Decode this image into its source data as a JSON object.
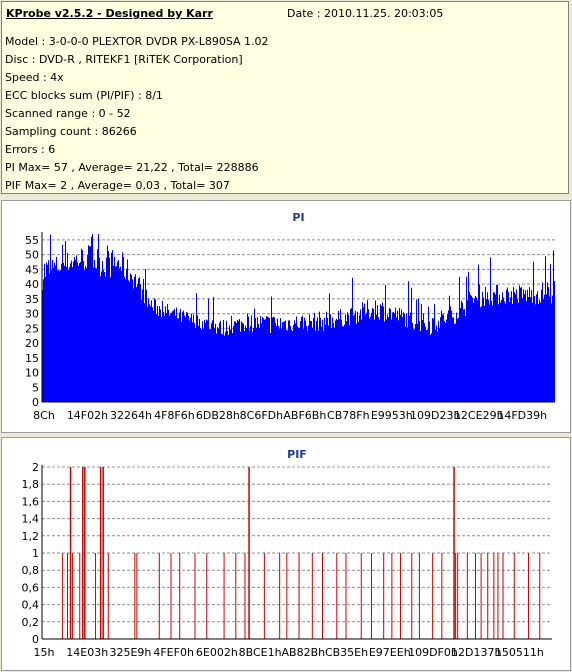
{
  "info": {
    "title": "KProbe v2.5.2 - Designed by Karr",
    "date": "Date : 2010.11.25. 20:03:05",
    "lines": [
      "Model : 3-0-0-0 PLEXTOR DVDR   PX-L890SA 1.02",
      "Disc : DVD-R , RITEKF1 [RiTEK Corporation]",
      "Speed : 4x",
      "ECC blocks sum (PI/PIF) : 8/1",
      "Scanned range : 0 - 52",
      "Sampling count : 86266",
      "Errors : 6",
      "PI Max= 57 , Average= 21,22 , Total= 228886",
      "PIF Max= 2 , Average= 0,03 , Total= 307"
    ]
  },
  "chart_data": [
    {
      "type": "bar",
      "title": "PI",
      "color": "#0000ff",
      "ylim": [
        0,
        57
      ],
      "y_ticks": [
        "0",
        "5",
        "10",
        "15",
        "20",
        "25",
        "30",
        "35",
        "40",
        "45",
        "50",
        "55"
      ],
      "x_ticks": [
        "8Ch",
        "14F02h",
        "32264h",
        "4F8F6h",
        "6DB28h",
        "8C6FDh",
        "ABF6Bh",
        "CB78Fh",
        "E9953h",
        "109D23h",
        "12CE29h",
        "14FD39h"
      ],
      "grid": true,
      "profile": [
        [
          0,
          38,
          50
        ],
        [
          3,
          42,
          50
        ],
        [
          6,
          44,
          52
        ],
        [
          9,
          44,
          54
        ],
        [
          12,
          42,
          52
        ],
        [
          15,
          42,
          52
        ],
        [
          18,
          38,
          46
        ],
        [
          21,
          30,
          36
        ],
        [
          25,
          27,
          33
        ],
        [
          30,
          25,
          30
        ],
        [
          35,
          22,
          28
        ],
        [
          40,
          24,
          30
        ],
        [
          45,
          23,
          30
        ],
        [
          50,
          24,
          30
        ],
        [
          55,
          24,
          31
        ],
        [
          60,
          26,
          32
        ],
        [
          65,
          28,
          36
        ],
        [
          70,
          26,
          32
        ],
        [
          75,
          22,
          30
        ],
        [
          80,
          26,
          33
        ],
        [
          85,
          32,
          40
        ],
        [
          90,
          33,
          40
        ],
        [
          95,
          33,
          40
        ],
        [
          100,
          33,
          42
        ]
      ]
    },
    {
      "type": "bar",
      "title": "PIF",
      "color": "#cc0000",
      "ylim": [
        0,
        2
      ],
      "y_ticks": [
        "0",
        "0,2",
        "0,4",
        "0,6",
        "0,8",
        "1",
        "1,2",
        "1,4",
        "1,6",
        "1,8",
        "2"
      ],
      "x_ticks": [
        "15h",
        "14E03h",
        "325E9h",
        "4FEF0h",
        "6E002h",
        "8BCE1h",
        "AB82Bh",
        "CB35Eh",
        "E97EEh",
        "109DF0h",
        "12D137h",
        "150511h"
      ],
      "grid": true,
      "spikes": [
        [
          4.0,
          1
        ],
        [
          5.0,
          1
        ],
        [
          5.6,
          2
        ],
        [
          6.0,
          1
        ],
        [
          7.4,
          1
        ],
        [
          8.0,
          2
        ],
        [
          8.4,
          2
        ],
        [
          10.5,
          1
        ],
        [
          11.5,
          2
        ],
        [
          12.0,
          2
        ],
        [
          13.0,
          1
        ],
        [
          18.2,
          1
        ],
        [
          18.6,
          1
        ],
        [
          23.0,
          1
        ],
        [
          25.3,
          1
        ],
        [
          27.0,
          1
        ],
        [
          30.0,
          1
        ],
        [
          32.3,
          1
        ],
        [
          35.7,
          1
        ],
        [
          38.0,
          1
        ],
        [
          39.8,
          1
        ],
        [
          40.6,
          2
        ],
        [
          43.6,
          1
        ],
        [
          46.6,
          1
        ],
        [
          48.0,
          1
        ],
        [
          50.4,
          1
        ],
        [
          53.0,
          1
        ],
        [
          55.0,
          1
        ],
        [
          57.8,
          1
        ],
        [
          59.6,
          1
        ],
        [
          62.6,
          1
        ],
        [
          64.6,
          1
        ],
        [
          67.0,
          1
        ],
        [
          68.6,
          1
        ],
        [
          70.3,
          1
        ],
        [
          72.5,
          1
        ],
        [
          74.0,
          1
        ],
        [
          76.6,
          1
        ],
        [
          78.4,
          1
        ],
        [
          80.8,
          2
        ],
        [
          81.1,
          1
        ],
        [
          81.5,
          1
        ],
        [
          83.4,
          1
        ],
        [
          85.0,
          1
        ],
        [
          86.1,
          1
        ],
        [
          87.4,
          1
        ],
        [
          88.6,
          1
        ],
        [
          89.4,
          1
        ],
        [
          90.4,
          1
        ],
        [
          92.6,
          1
        ],
        [
          95.4,
          1
        ],
        [
          97.6,
          1
        ]
      ]
    }
  ]
}
